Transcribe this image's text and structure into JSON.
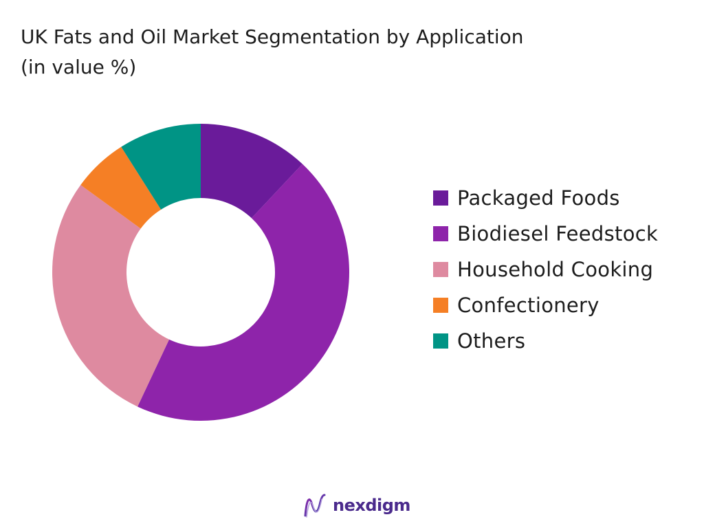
{
  "title_line1": "UK Fats and Oil Market Segmentation by Application",
  "title_line2": "(in value %)",
  "chart_data": {
    "type": "pie",
    "donut": true,
    "title": "UK Fats and Oil Market Segmentation by Application (in value %)",
    "categories": [
      "Packaged Foods",
      "Biodiesel Feedstock",
      "Household Cooking",
      "Confectionery",
      "Others"
    ],
    "values": [
      12,
      45,
      28,
      6,
      9
    ],
    "colors": [
      "#6a1b9a",
      "#8e24aa",
      "#de8aa0",
      "#f57f25",
      "#009485"
    ],
    "legend_position": "right"
  },
  "legend": [
    {
      "label": "Packaged Foods",
      "color": "#6a1b9a"
    },
    {
      "label": "Biodiesel Feedstock",
      "color": "#8e24aa"
    },
    {
      "label": "Household Cooking",
      "color": "#de8aa0"
    },
    {
      "label": "Confectionery",
      "color": "#f57f25"
    },
    {
      "label": "Others",
      "color": "#009485"
    }
  ],
  "brand": {
    "name": "nexdigm",
    "icon": "nexdigm-logo-icon",
    "color": "#4a2a8c"
  }
}
